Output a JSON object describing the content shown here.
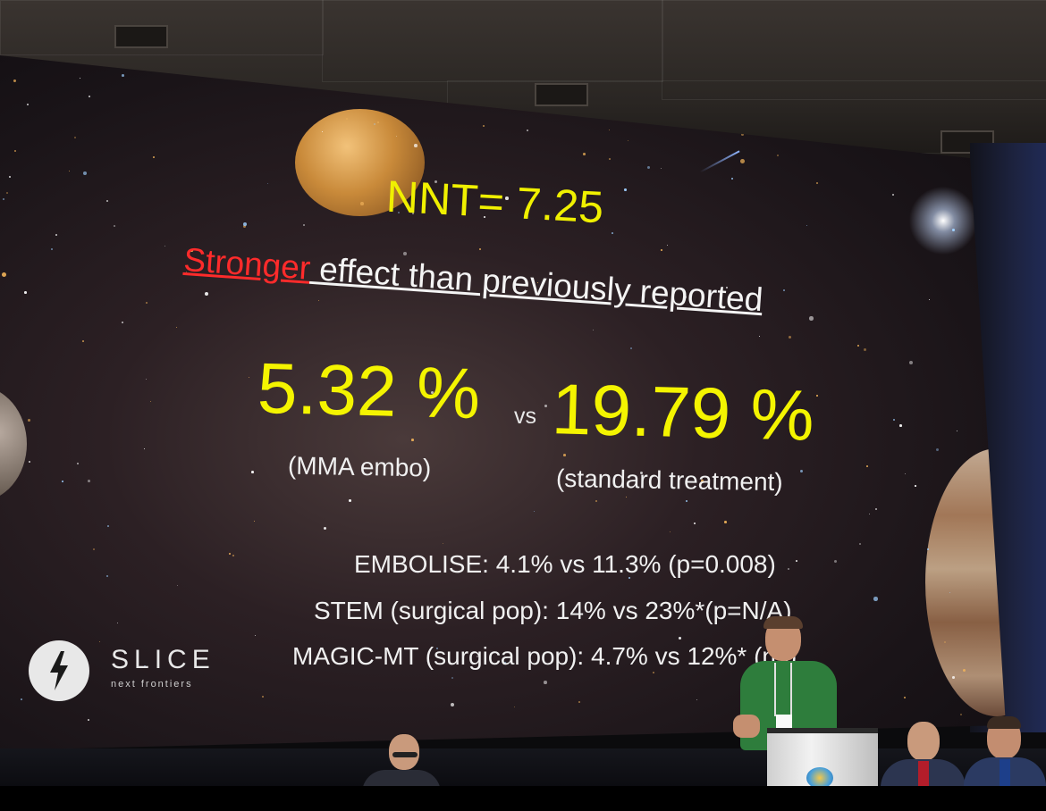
{
  "slide": {
    "nnt": "NNT= 7.25",
    "headline_red": "Stronger",
    "headline_rest": " effect than previously reported",
    "stat_a": "5.32 %",
    "vs": "vs",
    "stat_b": "19.79 %",
    "label_a": "(MMA embo)",
    "label_b": "(standard treatment)",
    "study_lines": [
      "EMBOLISE: 4.1% vs 11.3%  (p=0.008)",
      "STEM (surgical pop): 14% vs 23%*(p=N/A)",
      "MAGIC-MT (surgical pop): 4.7% vs 12%* (ns)"
    ]
  },
  "logo": {
    "name": "SLICE",
    "tagline": "next frontiers",
    "icon": "lightning-bolt-icon"
  },
  "colors": {
    "highlight_yellow": "#f4f400",
    "accent_red": "#ff2b2b",
    "speaker_shirt": "#2e7d3c"
  }
}
